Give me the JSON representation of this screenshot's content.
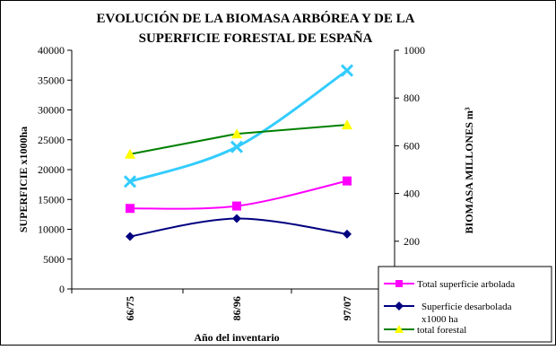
{
  "chart_data": {
    "type": "line",
    "title_line1": "EVOLUCIÓN DE LA BIOMASA ARBÓREA Y DE LA",
    "title_line2": "SUPERFICIE FORESTAL DE ESPAÑA",
    "xlabel": "Año del inventario",
    "ylabel_left": "SUPERFICIE  x1000ha",
    "ylabel_right": "BIOMASA  MILLONES  m³",
    "categories": [
      "66/75",
      "86/96",
      "97/07"
    ],
    "y_left": {
      "lim": [
        0,
        40000
      ],
      "ticks": [
        "0",
        "5000",
        "10000",
        "15000",
        "20000",
        "25000",
        "30000",
        "35000",
        "40000"
      ]
    },
    "y_right": {
      "lim": [
        0,
        1000
      ],
      "ticks": [
        "200",
        "400",
        "600",
        "800",
        "1000"
      ]
    },
    "grid": false,
    "legend_position": "bottom-right",
    "series": [
      {
        "name": "Total superficie arbolada",
        "values": [
          13500,
          13900,
          18100
        ],
        "axis": "left",
        "color": "#ff00ff",
        "marker": "square",
        "smooth": true
      },
      {
        "name": "Superficie desarbolada",
        "values": [
          8800,
          11800,
          9200
        ],
        "axis": "left",
        "color": "#000080",
        "marker": "diamond",
        "smooth": true
      },
      {
        "name": "total forestal",
        "values": [
          22600,
          26000,
          27500
        ],
        "axis": "left",
        "color": "#008000",
        "marker": "triangle",
        "smooth": false
      },
      {
        "name": "",
        "values": [
          450,
          595,
          915
        ],
        "axis": "right",
        "color": "#33ccff",
        "marker": "x",
        "smooth": true
      }
    ],
    "legend_note": "x1000 ha"
  }
}
